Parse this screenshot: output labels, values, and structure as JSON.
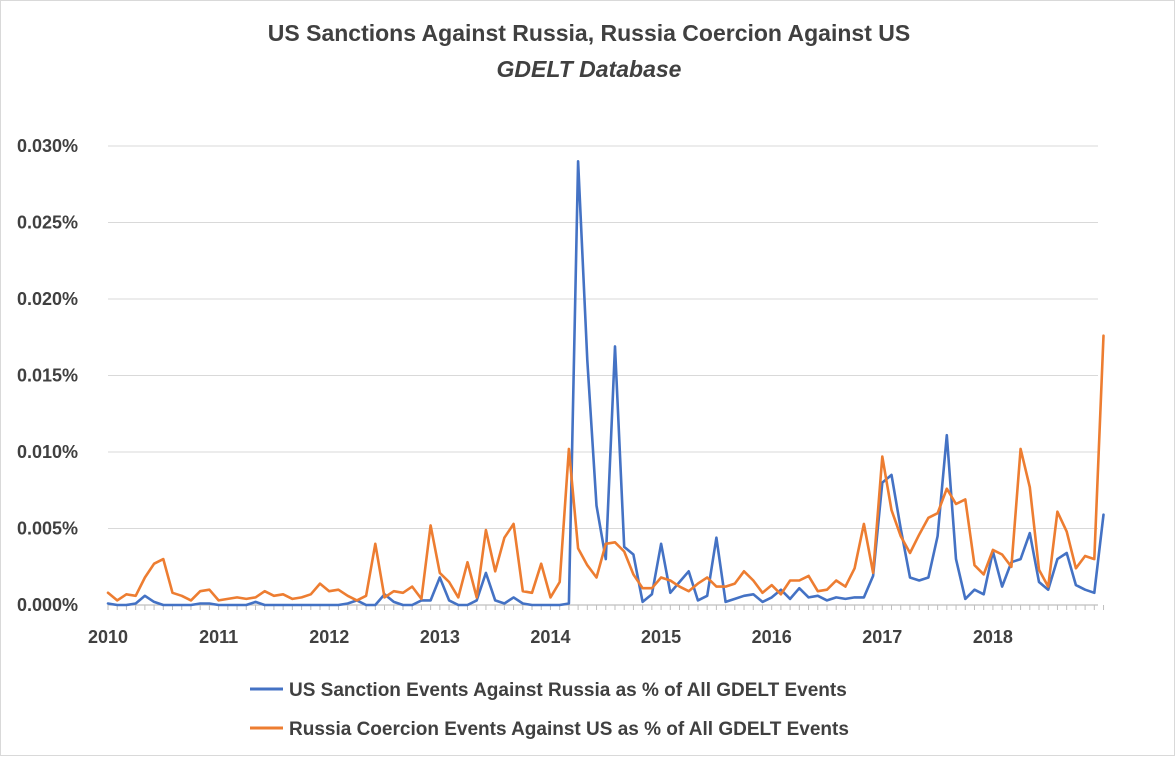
{
  "chart_data": {
    "type": "line",
    "title": "US Sanctions Against Russia, Russia Coercion Against US",
    "subtitle": "GDELT Database",
    "xlabel": "",
    "ylabel": "",
    "x_start": 2010.0,
    "x_step": 0.0833333,
    "xlim": [
      2010,
      2018.95
    ],
    "ylim": [
      0,
      0.03
    ],
    "y_ticks": [
      0,
      0.005,
      0.01,
      0.015,
      0.02,
      0.025,
      0.03
    ],
    "y_tick_labels": [
      "0.000%",
      "0.005%",
      "0.010%",
      "0.015%",
      "0.020%",
      "0.025%",
      "0.030%"
    ],
    "x_ticks": [
      2010,
      2011,
      2012,
      2013,
      2014,
      2015,
      2016,
      2017,
      2018
    ],
    "x_tick_labels": [
      "2010",
      "2011",
      "2012",
      "2013",
      "2014",
      "2015",
      "2016",
      "2017",
      "2018"
    ],
    "grid": true,
    "legend_position": "bottom",
    "series": [
      {
        "name": "US Sanction Events Against Russia as % of All GDELT Events",
        "color": "#4472c4",
        "values": [
          0.0001,
          0,
          0,
          0.0001,
          0.0006,
          0.0002,
          0,
          0,
          0,
          0,
          0.0001,
          0.0001,
          0,
          0,
          0,
          0,
          0.0002,
          0,
          0,
          0,
          0,
          0,
          0,
          0,
          0,
          0,
          0.0001,
          0.0003,
          0,
          0,
          0.0007,
          0.0002,
          0,
          0,
          0.0003,
          0.0003,
          0.0018,
          0.0003,
          0,
          0,
          0.0003,
          0.0021,
          0.0003,
          0.0001,
          0.0005,
          0.0001,
          0,
          0,
          0,
          0,
          0.0001,
          0.029,
          0.016,
          0.0065,
          0.003,
          0.0169,
          0.0038,
          0.0033,
          0.0002,
          0.0007,
          0.004,
          0.0008,
          0.0015,
          0.0022,
          0.0003,
          0.0006,
          0.0044,
          0.0002,
          0.0004,
          0.0006,
          0.0007,
          0.0002,
          0.0005,
          0.001,
          0.0004,
          0.0011,
          0.0005,
          0.0006,
          0.0003,
          0.0005,
          0.0004,
          0.0005,
          0.0005,
          0.0019,
          0.008,
          0.0085,
          0.005,
          0.0018,
          0.0016,
          0.0018,
          0.0045,
          0.0111,
          0.003,
          0.0004,
          0.001,
          0.0007,
          0.0035,
          0.0012,
          0.0028,
          0.003,
          0.0047,
          0.0015,
          0.001,
          0.003,
          0.0034,
          0.0013,
          0.001,
          0.0008,
          0.0059
        ]
      },
      {
        "name": "Russia Coercion Events Against US as % of All GDELT Events",
        "color": "#ed7d31",
        "values": [
          0.0008,
          0.0003,
          0.0007,
          0.0006,
          0.0018,
          0.0027,
          0.003,
          0.0008,
          0.0006,
          0.0003,
          0.0009,
          0.001,
          0.0003,
          0.0004,
          0.0005,
          0.0004,
          0.0005,
          0.0009,
          0.0006,
          0.0007,
          0.0004,
          0.0005,
          0.0007,
          0.0014,
          0.0009,
          0.001,
          0.0006,
          0.0003,
          0.0006,
          0.004,
          0.0005,
          0.0009,
          0.0008,
          0.0012,
          0.0004,
          0.0052,
          0.0021,
          0.0015,
          0.0005,
          0.0028,
          0.0005,
          0.0049,
          0.0022,
          0.0044,
          0.0053,
          0.0009,
          0.0008,
          0.0027,
          0.0005,
          0.0015,
          0.0102,
          0.0037,
          0.0026,
          0.0018,
          0.004,
          0.0041,
          0.0035,
          0.002,
          0.0011,
          0.0011,
          0.0018,
          0.0016,
          0.0012,
          0.0009,
          0.0014,
          0.0018,
          0.0012,
          0.0012,
          0.0014,
          0.0022,
          0.0016,
          0.0008,
          0.0013,
          0.0007,
          0.0016,
          0.0016,
          0.0019,
          0.0009,
          0.001,
          0.0016,
          0.0012,
          0.0024,
          0.0053,
          0.0021,
          0.0097,
          0.0062,
          0.0045,
          0.0034,
          0.0046,
          0.0057,
          0.006,
          0.0076,
          0.0066,
          0.0069,
          0.0026,
          0.002,
          0.0036,
          0.0033,
          0.0025,
          0.0102,
          0.0077,
          0.0023,
          0.0012,
          0.0061,
          0.0048,
          0.0024,
          0.0032,
          0.003,
          0.0176
        ]
      }
    ]
  }
}
